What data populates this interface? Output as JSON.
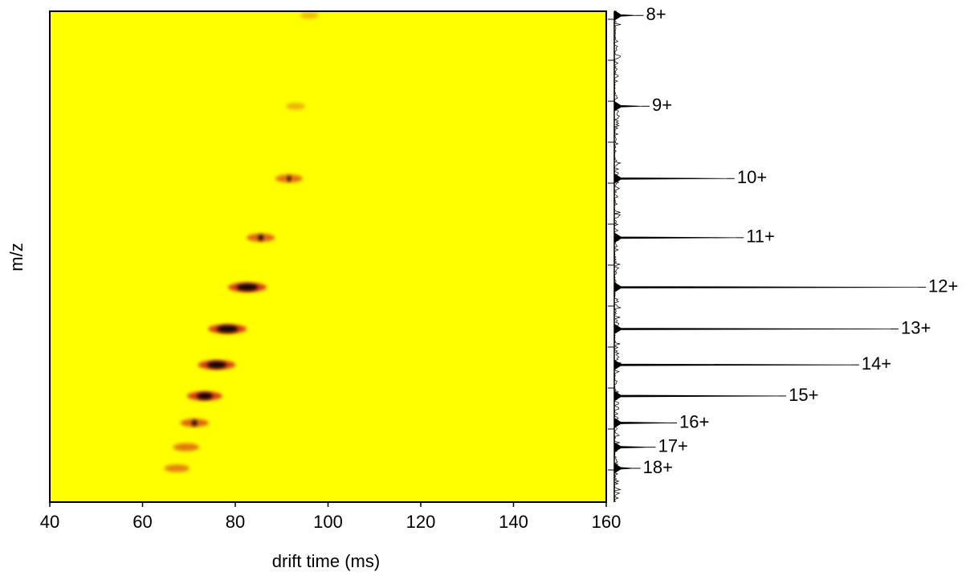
{
  "chart_data": {
    "type": "heatmap",
    "x_label": "drift time (ms)",
    "y_label": "m/z",
    "xlim": [
      40,
      160
    ],
    "xticks": [
      40,
      60,
      80,
      100,
      120,
      140,
      160
    ],
    "ylim": [
      624,
      1554
    ],
    "colors": {
      "field": "#ffff00",
      "spot": "#d84018",
      "core": "#000000",
      "spectrum": "#000000"
    },
    "spots": {
      "charges": [
        "8+",
        "9+",
        "10+",
        "11+",
        "12+",
        "13+",
        "14+",
        "15+",
        "16+",
        "17+",
        "18+"
      ],
      "mz": [
        1546,
        1374,
        1237,
        1125,
        1031,
        952,
        884,
        825,
        774,
        728,
        688
      ],
      "drift": [
        96,
        93,
        91.6,
        85.5,
        82.6,
        78.3,
        76,
        73.4,
        71.2,
        69.4,
        67.4
      ],
      "intensity": [
        10,
        15,
        50,
        55,
        100,
        100,
        95,
        85,
        55,
        45,
        40
      ]
    },
    "spectrum": [
      7,
      9,
      37,
      40,
      100,
      91,
      78,
      54,
      18,
      11,
      6
    ]
  }
}
